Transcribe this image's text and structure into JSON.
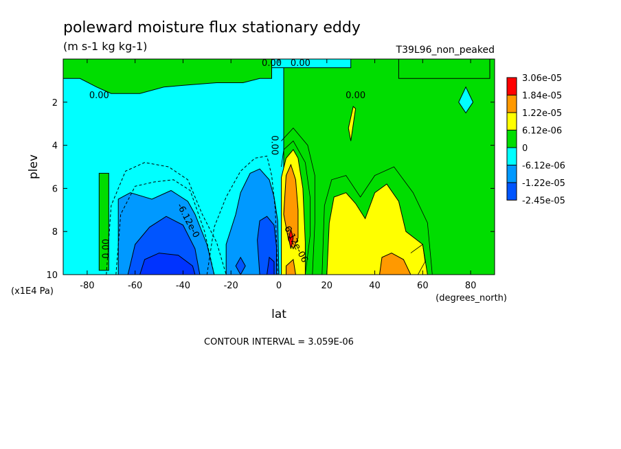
{
  "chart_data": {
    "type": "heatmap",
    "title": "poleward moisture flux stationary eddy",
    "units": "(m s-1 kg kg-1)",
    "run_label": "T39L96_non_peaked",
    "xlabel": "lat",
    "x_units": "(degrees_north)",
    "ylabel": "plev",
    "y_units": "(x1E4 Pa)",
    "footer": "CONTOUR INTERVAL = 3.059E-06",
    "xlim": [
      -90,
      90
    ],
    "ylim": [
      0,
      10
    ],
    "y_inverted": true,
    "x_ticks": [
      -80,
      -60,
      -40,
      -20,
      0,
      20,
      40,
      60,
      80
    ],
    "x_tick_labels": [
      "-80",
      "-60",
      "-40",
      "-20",
      "0",
      "20",
      "40",
      "60",
      "80"
    ],
    "y_ticks": [
      2,
      4,
      6,
      8,
      10
    ],
    "y_tick_labels": [
      "2",
      "4",
      "6",
      "8",
      "10"
    ],
    "colorbar": {
      "labels": [
        "3.06e-05",
        "1.84e-05",
        "1.22e-05",
        "6.12e-06",
        "0",
        "-6.12e-06",
        "-1.22e-05",
        "-2.45e-05"
      ],
      "colors": [
        "#ff0000",
        "#ff9900",
        "#ffff00",
        "#00dd00",
        "#00ffff",
        "#0099ff",
        "#0055ff",
        "#ff0000"
      ]
    },
    "contour_labels": [
      {
        "text": "0.00",
        "lat": -3,
        "plev": 0.2
      },
      {
        "text": "0.00",
        "lat": 9,
        "plev": 0.2
      },
      {
        "text": "0.00",
        "lat": -75,
        "plev": 1.7
      },
      {
        "text": "0.00",
        "lat": 32,
        "plev": 1.7
      },
      {
        "text": "0.00",
        "lat": -2,
        "plev": 4.0
      },
      {
        "text": "0.00",
        "lat": -72,
        "plev": 8.8
      },
      {
        "text": "-6.12e-0",
        "lat": -38,
        "plev": 7.5
      },
      {
        "text": "6.12e-06",
        "lat": 7,
        "plev": 8.6
      }
    ],
    "regions": {
      "cyan": [
        [
          [
            -90,
            0
          ],
          [
            -3,
            0
          ],
          [
            2,
            0
          ],
          [
            2,
            10
          ],
          [
            -90,
            10
          ]
        ],
        [
          [
            -11,
            0
          ],
          [
            -11,
            0.4
          ],
          [
            30,
            0.4
          ],
          [
            30,
            0
          ]
        ],
        [
          [
            -68,
            1.2
          ],
          [
            -66,
            0.8
          ],
          [
            -63,
            1.2
          ]
        ],
        [
          [
            75,
            2
          ],
          [
            78,
            1.3
          ],
          [
            81,
            2
          ],
          [
            78,
            2.5
          ]
        ],
        [
          [
            54,
            0.5
          ],
          [
            57,
            0.25
          ],
          [
            58,
            0.6
          ],
          [
            55,
            0.85
          ]
        ]
      ],
      "green_in_cyan": [
        [
          [
            -75,
            5.3
          ],
          [
            -71,
            5.3
          ],
          [
            -71,
            9.8
          ],
          [
            -75,
            9.8
          ]
        ],
        [
          [
            -90,
            0
          ],
          [
            -90,
            0.9
          ],
          [
            -83,
            0.9
          ],
          [
            -76,
            1.3
          ],
          [
            -70,
            1.6
          ],
          [
            -58,
            1.6
          ],
          [
            -48,
            1.3
          ],
          [
            -38,
            1.2
          ],
          [
            -26,
            1.1
          ],
          [
            -15,
            1.1
          ],
          [
            -8,
            0.9
          ],
          [
            -3,
            0.9
          ],
          [
            -3,
            0
          ]
        ],
        [
          [
            50,
            0
          ],
          [
            50,
            0.9
          ],
          [
            88,
            0.9
          ],
          [
            88,
            0
          ]
        ]
      ],
      "light_blue": [
        [
          [
            -67,
            10
          ],
          [
            -67,
            6.5
          ],
          [
            -62,
            6.2
          ],
          [
            -53,
            6.5
          ],
          [
            -45,
            6.1
          ],
          [
            -38,
            6.6
          ],
          [
            -35,
            7.2
          ],
          [
            -30,
            8.6
          ],
          [
            -27,
            10
          ]
        ],
        [
          [
            -22,
            10
          ],
          [
            -22,
            8.6
          ],
          [
            -18,
            7.2
          ],
          [
            -16,
            6.2
          ],
          [
            -12,
            5.3
          ],
          [
            -8,
            5.1
          ],
          [
            -4,
            5.6
          ],
          [
            -2,
            6.4
          ],
          [
            -0.5,
            7.5
          ],
          [
            0,
            10
          ]
        ]
      ],
      "mid_blue": [
        [
          [
            -63,
            10
          ],
          [
            -60,
            8.6
          ],
          [
            -54,
            7.8
          ],
          [
            -47,
            7.3
          ],
          [
            -40,
            7.7
          ],
          [
            -35,
            8.8
          ],
          [
            -33,
            10
          ]
        ],
        [
          [
            -8,
            10
          ],
          [
            -9,
            8.4
          ],
          [
            -8,
            7.5
          ],
          [
            -5,
            7.3
          ],
          [
            -2,
            7.7
          ],
          [
            -1,
            8.7
          ],
          [
            -1,
            10
          ]
        ],
        [
          [
            -18,
            9.6
          ],
          [
            -16,
            9.2
          ],
          [
            -14,
            9.6
          ],
          [
            -16,
            10
          ]
        ]
      ],
      "dark_blue": [
        [
          [
            -58,
            10
          ],
          [
            -56,
            9.3
          ],
          [
            -50,
            9.0
          ],
          [
            -42,
            9.1
          ],
          [
            -36,
            9.6
          ],
          [
            -35,
            10
          ]
        ],
        [
          [
            -5,
            10
          ],
          [
            -4,
            9.2
          ],
          [
            -2,
            9.4
          ],
          [
            -2,
            10
          ]
        ]
      ],
      "yellow": [
        [
          [
            1,
            10
          ],
          [
            1,
            5.5
          ],
          [
            3,
            4.6
          ],
          [
            6,
            4.2
          ],
          [
            8,
            4.6
          ],
          [
            10,
            6.0
          ],
          [
            10.5,
            7.2
          ],
          [
            11,
            8.5
          ],
          [
            11,
            10
          ]
        ],
        [
          [
            20,
            10
          ],
          [
            21,
            7.6
          ],
          [
            23,
            6.4
          ],
          [
            28,
            6.2
          ],
          [
            32,
            6.7
          ],
          [
            36,
            7.4
          ],
          [
            40,
            6.2
          ],
          [
            45,
            5.8
          ],
          [
            50,
            6.6
          ],
          [
            53,
            8.0
          ],
          [
            60,
            8.6
          ],
          [
            62,
            10
          ]
        ],
        [
          [
            29,
            3.2
          ],
          [
            31,
            2.2
          ],
          [
            32,
            2.3
          ],
          [
            30,
            3.8
          ]
        ]
      ],
      "orange": [
        [
          [
            2,
            7.2
          ],
          [
            3,
            5.4
          ],
          [
            5,
            4.9
          ],
          [
            7,
            5.6
          ],
          [
            8,
            7.0
          ],
          [
            8,
            8.3
          ],
          [
            6,
            8.8
          ],
          [
            4,
            8.4
          ]
        ],
        [
          [
            42,
            10
          ],
          [
            43,
            9.2
          ],
          [
            47,
            9.0
          ],
          [
            52,
            9.3
          ],
          [
            55,
            10
          ]
        ],
        [
          [
            3,
            9.6
          ],
          [
            6,
            9.3
          ],
          [
            7,
            10
          ],
          [
            3,
            10
          ]
        ]
      ],
      "red": [
        [
          [
            4,
            8.3
          ],
          [
            5,
            7.9
          ],
          [
            6,
            8.3
          ],
          [
            5,
            8.8
          ]
        ]
      ]
    }
  }
}
